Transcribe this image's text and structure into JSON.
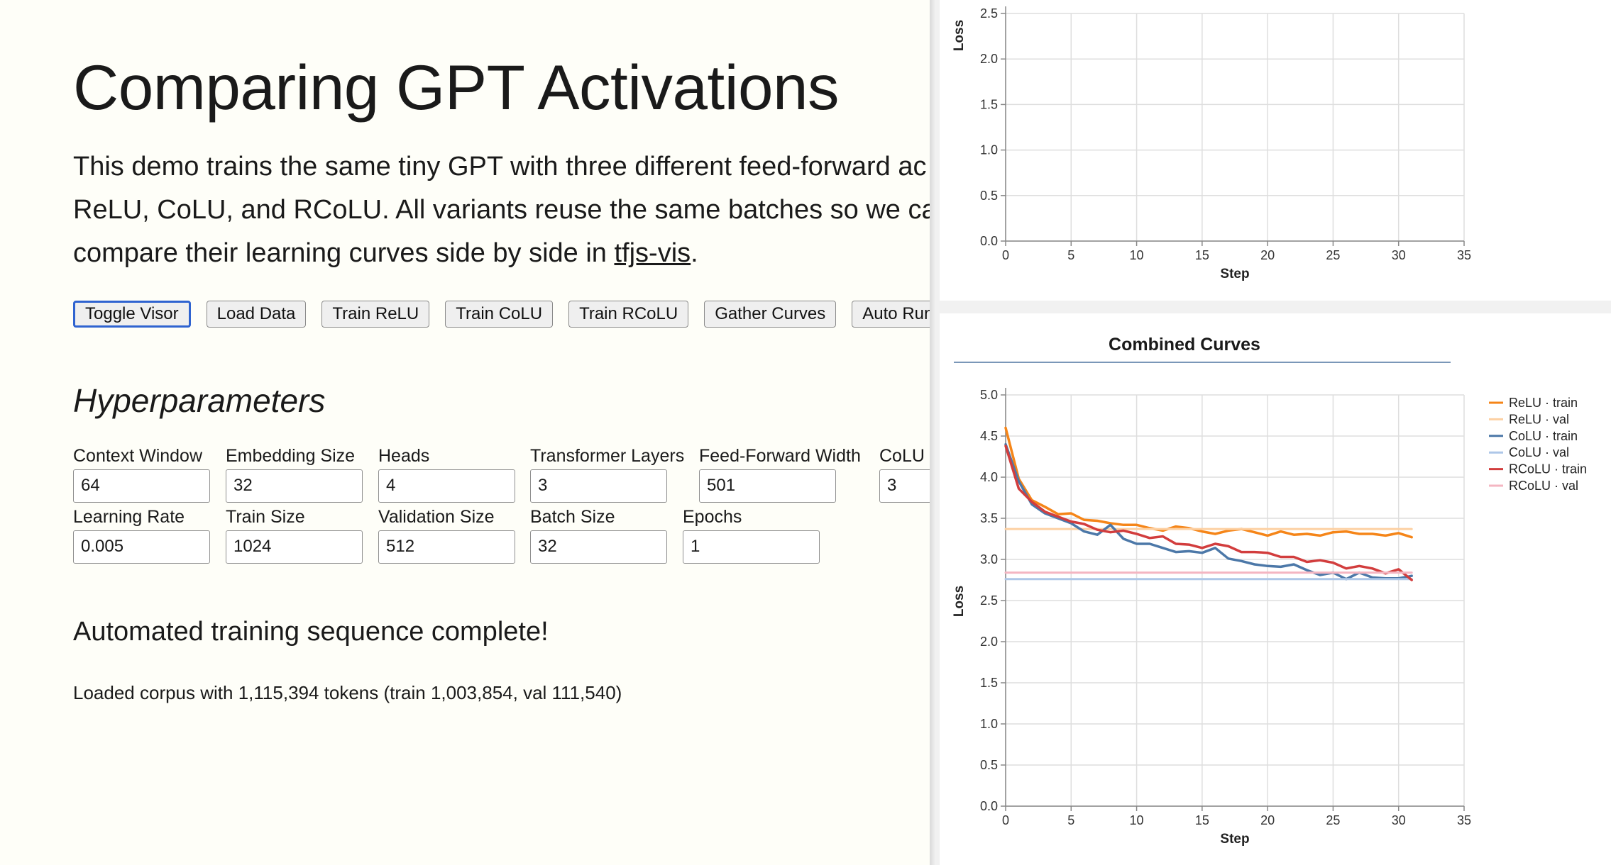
{
  "page": {
    "title": "Comparing GPT Activations",
    "intro_lines": [
      "This demo trains the same tiny GPT with three different feed-forward ac",
      "ReLU, CoLU, and RCoLU. All variants reuse the same batches so we ca",
      "compare their learning curves side by side in "
    ],
    "intro_link": "tfjs-vis",
    "intro_end": "."
  },
  "buttons": [
    "Toggle Visor",
    "Load Data",
    "Train ReLU",
    "Train CoLU",
    "Train RCoLU",
    "Gather Curves",
    "Auto Run A"
  ],
  "hyper": {
    "heading": "Hyperparameters",
    "fields": [
      {
        "label": "Context Window",
        "value": "64"
      },
      {
        "label": "Embedding Size",
        "value": "32"
      },
      {
        "label": "Heads",
        "value": "4"
      },
      {
        "label": "Transformer Layers",
        "value": "3"
      },
      {
        "label": "Feed-Forward Width",
        "value": "501"
      },
      {
        "label": "CoLU",
        "value": "3"
      },
      {
        "label": "Learning Rate",
        "value": "0.005"
      },
      {
        "label": "Train Size",
        "value": "1024"
      },
      {
        "label": "Validation Size",
        "value": "512"
      },
      {
        "label": "Batch Size",
        "value": "32"
      },
      {
        "label": "Epochs",
        "value": "1"
      }
    ]
  },
  "status": "Automated training sequence complete!",
  "log": "Loaded corpus with 1,115,394 tokens (train 1,003,854, val 111,540)",
  "chart_data": [
    {
      "type": "line",
      "title": "",
      "xlabel": "Step",
      "ylabel": "Loss",
      "xlim": [
        0,
        35
      ],
      "ylim": [
        0,
        2.5
      ],
      "x_ticks": [
        0,
        5,
        10,
        15,
        20,
        25,
        30,
        35
      ],
      "y_ticks": [
        0.0,
        0.5,
        1.0,
        1.5,
        2.0,
        2.5
      ],
      "y_tick_labels": [
        "0.0",
        "0.5",
        "1.0",
        "1.5",
        "2.0",
        "2.5"
      ],
      "grid": true,
      "series": []
    },
    {
      "type": "line",
      "title": "Combined Curves",
      "xlabel": "Step",
      "ylabel": "Loss",
      "xlim": [
        0,
        35
      ],
      "ylim": [
        0,
        5
      ],
      "x_ticks": [
        0,
        5,
        10,
        15,
        20,
        25,
        30,
        35
      ],
      "y_ticks": [
        0.0,
        0.5,
        1.0,
        1.5,
        2.0,
        2.5,
        3.0,
        3.5,
        4.0,
        4.5,
        5.0
      ],
      "y_tick_labels": [
        "0.0",
        "0.5",
        "1.0",
        "1.5",
        "2.0",
        "2.5",
        "3.0",
        "3.5",
        "4.0",
        "4.5",
        "5.0"
      ],
      "grid": true,
      "legend": "right",
      "series": [
        {
          "name": "ReLU · train",
          "color": "#f58518",
          "x": [
            0,
            1,
            2,
            3,
            4,
            5,
            6,
            7,
            8,
            9,
            10,
            11,
            12,
            13,
            14,
            15,
            16,
            17,
            18,
            19,
            20,
            21,
            22,
            23,
            24,
            25,
            26,
            27,
            28,
            29,
            30,
            31
          ],
          "y": [
            4.6,
            3.98,
            3.72,
            3.64,
            3.55,
            3.56,
            3.48,
            3.47,
            3.44,
            3.42,
            3.42,
            3.38,
            3.35,
            3.4,
            3.38,
            3.34,
            3.31,
            3.35,
            3.37,
            3.33,
            3.29,
            3.34,
            3.3,
            3.31,
            3.29,
            3.33,
            3.34,
            3.31,
            3.31,
            3.29,
            3.32,
            3.27
          ]
        },
        {
          "name": "ReLU · val",
          "color": "#fdd0a2",
          "x": [
            0,
            31
          ],
          "y": [
            3.37,
            3.37
          ]
        },
        {
          "name": "CoLU · train",
          "color": "#4c78a8",
          "x": [
            0,
            1,
            2,
            3,
            4,
            5,
            6,
            7,
            8,
            9,
            10,
            11,
            12,
            13,
            14,
            15,
            16,
            17,
            18,
            19,
            20,
            21,
            22,
            23,
            24,
            25,
            26,
            27,
            28,
            29,
            30,
            31
          ],
          "y": [
            4.4,
            3.95,
            3.67,
            3.56,
            3.5,
            3.44,
            3.34,
            3.3,
            3.42,
            3.25,
            3.19,
            3.19,
            3.14,
            3.09,
            3.1,
            3.08,
            3.14,
            3.01,
            2.98,
            2.94,
            2.92,
            2.91,
            2.94,
            2.87,
            2.81,
            2.84,
            2.76,
            2.84,
            2.78,
            2.77,
            2.77,
            2.8
          ]
        },
        {
          "name": "CoLU · val",
          "color": "#aec7e8",
          "x": [
            0,
            31
          ],
          "y": [
            2.76,
            2.76
          ]
        },
        {
          "name": "RCoLU · train",
          "color": "#d23d3d",
          "x": [
            0,
            1,
            2,
            3,
            4,
            5,
            6,
            7,
            8,
            9,
            10,
            11,
            12,
            13,
            14,
            15,
            16,
            17,
            18,
            19,
            20,
            21,
            22,
            23,
            24,
            25,
            26,
            27,
            28,
            29,
            30,
            31
          ],
          "y": [
            4.38,
            3.86,
            3.7,
            3.58,
            3.52,
            3.46,
            3.43,
            3.36,
            3.33,
            3.35,
            3.31,
            3.26,
            3.28,
            3.19,
            3.18,
            3.14,
            3.19,
            3.16,
            3.09,
            3.09,
            3.08,
            3.03,
            3.03,
            2.97,
            2.99,
            2.96,
            2.89,
            2.92,
            2.89,
            2.83,
            2.88,
            2.75
          ]
        },
        {
          "name": "RCoLU · val",
          "color": "#f4b6c2",
          "x": [
            0,
            31
          ],
          "y": [
            2.84,
            2.84
          ]
        }
      ]
    }
  ]
}
